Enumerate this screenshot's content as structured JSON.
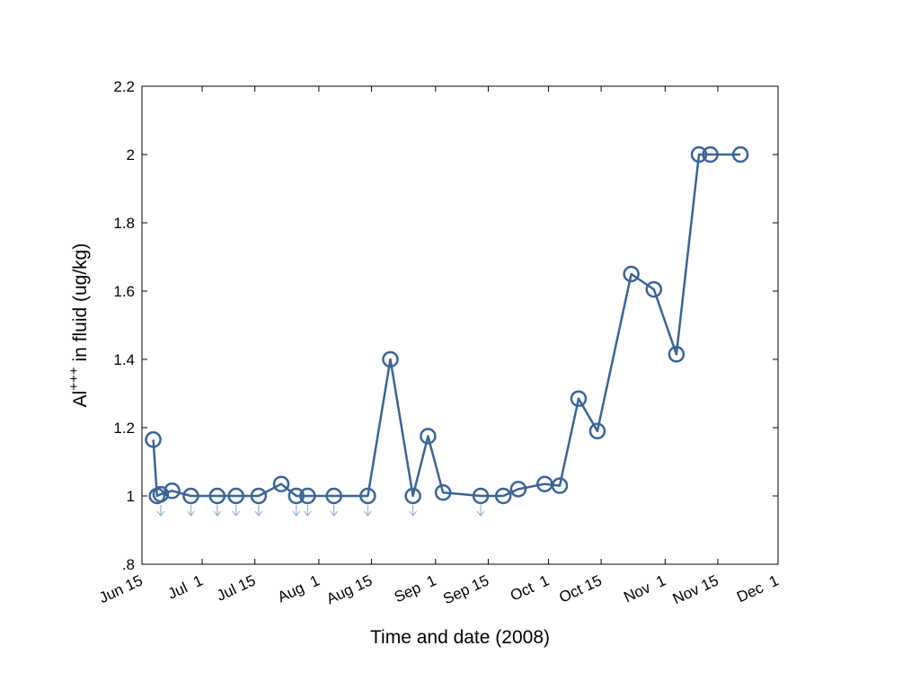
{
  "chart_data": {
    "type": "line",
    "title": "",
    "xlabel": "Time and date (2008)",
    "ylabel_main": "Al",
    "ylabel_sup": "+++",
    "ylabel_rest": " in fluid (ug/kg)",
    "xlim": [
      "2008-06-15",
      "2008-12-01"
    ],
    "ylim": [
      0.8,
      2.2
    ],
    "x_tick_dates": [
      "2008-06-15",
      "2008-07-01",
      "2008-07-15",
      "2008-08-01",
      "2008-08-15",
      "2008-09-01",
      "2008-09-15",
      "2008-10-01",
      "2008-10-15",
      "2008-11-01",
      "2008-11-15",
      "2008-12-01"
    ],
    "x_tick_labels": [
      "Jun 15",
      "Jul  1",
      "Jul 15",
      "Aug  1",
      "Aug 15",
      "Sep  1",
      "Sep 15",
      "Oct  1",
      "Oct 15",
      "Nov  1",
      "Nov 15",
      "Dec  1"
    ],
    "y_ticks": [
      0.8,
      1.0,
      1.2,
      1.4,
      1.6,
      1.8,
      2.0,
      2.2
    ],
    "y_tick_labels": [
      ".8",
      "1",
      "1.2",
      "1.4",
      "1.6",
      "1.8",
      "2",
      "2.2"
    ],
    "grid": false,
    "series": [
      {
        "marker": "circle",
        "color": "#3a6496",
        "points": [
          {
            "x": "2008-06-18",
            "y": 1.165,
            "below_detection": false
          },
          {
            "x": "2008-06-19",
            "y": 1.0,
            "below_detection": false
          },
          {
            "x": "2008-06-20",
            "y": 1.005,
            "below_detection": true
          },
          {
            "x": "2008-06-23",
            "y": 1.015,
            "below_detection": false
          },
          {
            "x": "2008-06-28",
            "y": 1.0,
            "below_detection": true
          },
          {
            "x": "2008-07-05",
            "y": 1.0,
            "below_detection": true
          },
          {
            "x": "2008-07-10",
            "y": 1.0,
            "below_detection": true
          },
          {
            "x": "2008-07-16",
            "y": 1.0,
            "below_detection": true
          },
          {
            "x": "2008-07-22",
            "y": 1.035,
            "below_detection": false
          },
          {
            "x": "2008-07-26",
            "y": 1.0,
            "below_detection": true
          },
          {
            "x": "2008-07-29",
            "y": 1.0,
            "below_detection": true
          },
          {
            "x": "2008-08-05",
            "y": 1.0,
            "below_detection": true
          },
          {
            "x": "2008-08-14",
            "y": 1.0,
            "below_detection": true
          },
          {
            "x": "2008-08-20",
            "y": 1.4,
            "below_detection": false
          },
          {
            "x": "2008-08-26",
            "y": 1.0,
            "below_detection": true
          },
          {
            "x": "2008-08-30",
            "y": 1.175,
            "below_detection": false
          },
          {
            "x": "2008-09-03",
            "y": 1.01,
            "below_detection": false
          },
          {
            "x": "2008-09-13",
            "y": 1.0,
            "below_detection": true
          },
          {
            "x": "2008-09-19",
            "y": 1.0,
            "below_detection": false
          },
          {
            "x": "2008-09-23",
            "y": 1.02,
            "below_detection": false
          },
          {
            "x": "2008-09-30",
            "y": 1.035,
            "below_detection": false
          },
          {
            "x": "2008-10-04",
            "y": 1.03,
            "below_detection": false
          },
          {
            "x": "2008-10-09",
            "y": 1.285,
            "below_detection": false
          },
          {
            "x": "2008-10-14",
            "y": 1.19,
            "below_detection": false
          },
          {
            "x": "2008-10-23",
            "y": 1.65,
            "below_detection": false
          },
          {
            "x": "2008-10-29",
            "y": 1.605,
            "below_detection": false
          },
          {
            "x": "2008-11-04",
            "y": 1.415,
            "below_detection": false
          },
          {
            "x": "2008-11-10",
            "y": 2.0,
            "below_detection": false
          },
          {
            "x": "2008-11-13",
            "y": 2.0,
            "below_detection": false
          },
          {
            "x": "2008-11-21",
            "y": 2.0,
            "below_detection": false
          }
        ]
      }
    ]
  }
}
